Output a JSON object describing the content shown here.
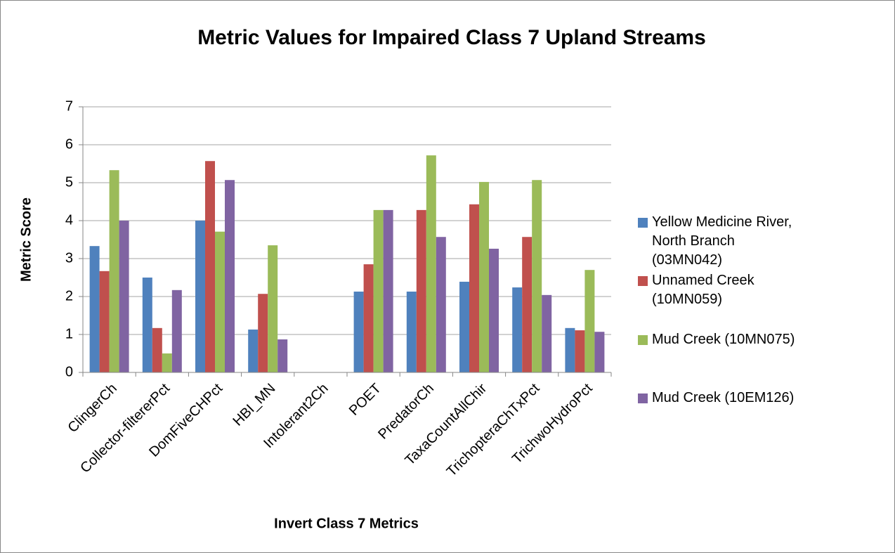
{
  "chart_data": {
    "type": "bar",
    "title": "Metric Values for Impaired Class 7 Upland Streams",
    "x_label": "Invert Class 7 Metrics",
    "y_label": "Metric Score",
    "categories": [
      "ClingerCh",
      "Collector-filtererPct",
      "DomFiveCHPct",
      "HBI_MN",
      "Intolerant2Ch",
      "POET",
      "PredatorCh",
      "TaxaCountAllChir",
      "TrichopteraChTxPct",
      "TrichwoHydroPct"
    ],
    "series": [
      {
        "name": "Yellow Medicine River, North Branch (03MN042)",
        "color": "#4f81bd",
        "values": [
          3.33,
          2.5,
          4.0,
          1.13,
          0,
          2.13,
          2.13,
          2.39,
          2.24,
          1.17
        ]
      },
      {
        "name": "Unnamed Creek (10MN059)",
        "color": "#c0504d",
        "values": [
          2.67,
          1.17,
          5.57,
          2.07,
          0,
          2.85,
          4.28,
          4.43,
          3.57,
          1.11
        ]
      },
      {
        "name": "Mud Creek (10MN075)",
        "color": "#9bbb59",
        "values": [
          5.33,
          0.5,
          3.71,
          3.35,
          0,
          4.28,
          5.72,
          5.02,
          5.07,
          2.7
        ]
      },
      {
        "name": "Mud Creek (10EM126)",
        "color": "#8064a2",
        "values": [
          4.0,
          2.17,
          5.07,
          0.87,
          0,
          4.28,
          3.57,
          3.26,
          2.04,
          1.07
        ]
      }
    ],
    "ylim": [
      0,
      7
    ],
    "yticks": [
      0,
      1,
      2,
      3,
      4,
      5,
      6,
      7
    ],
    "grid": true,
    "legend": "right"
  }
}
